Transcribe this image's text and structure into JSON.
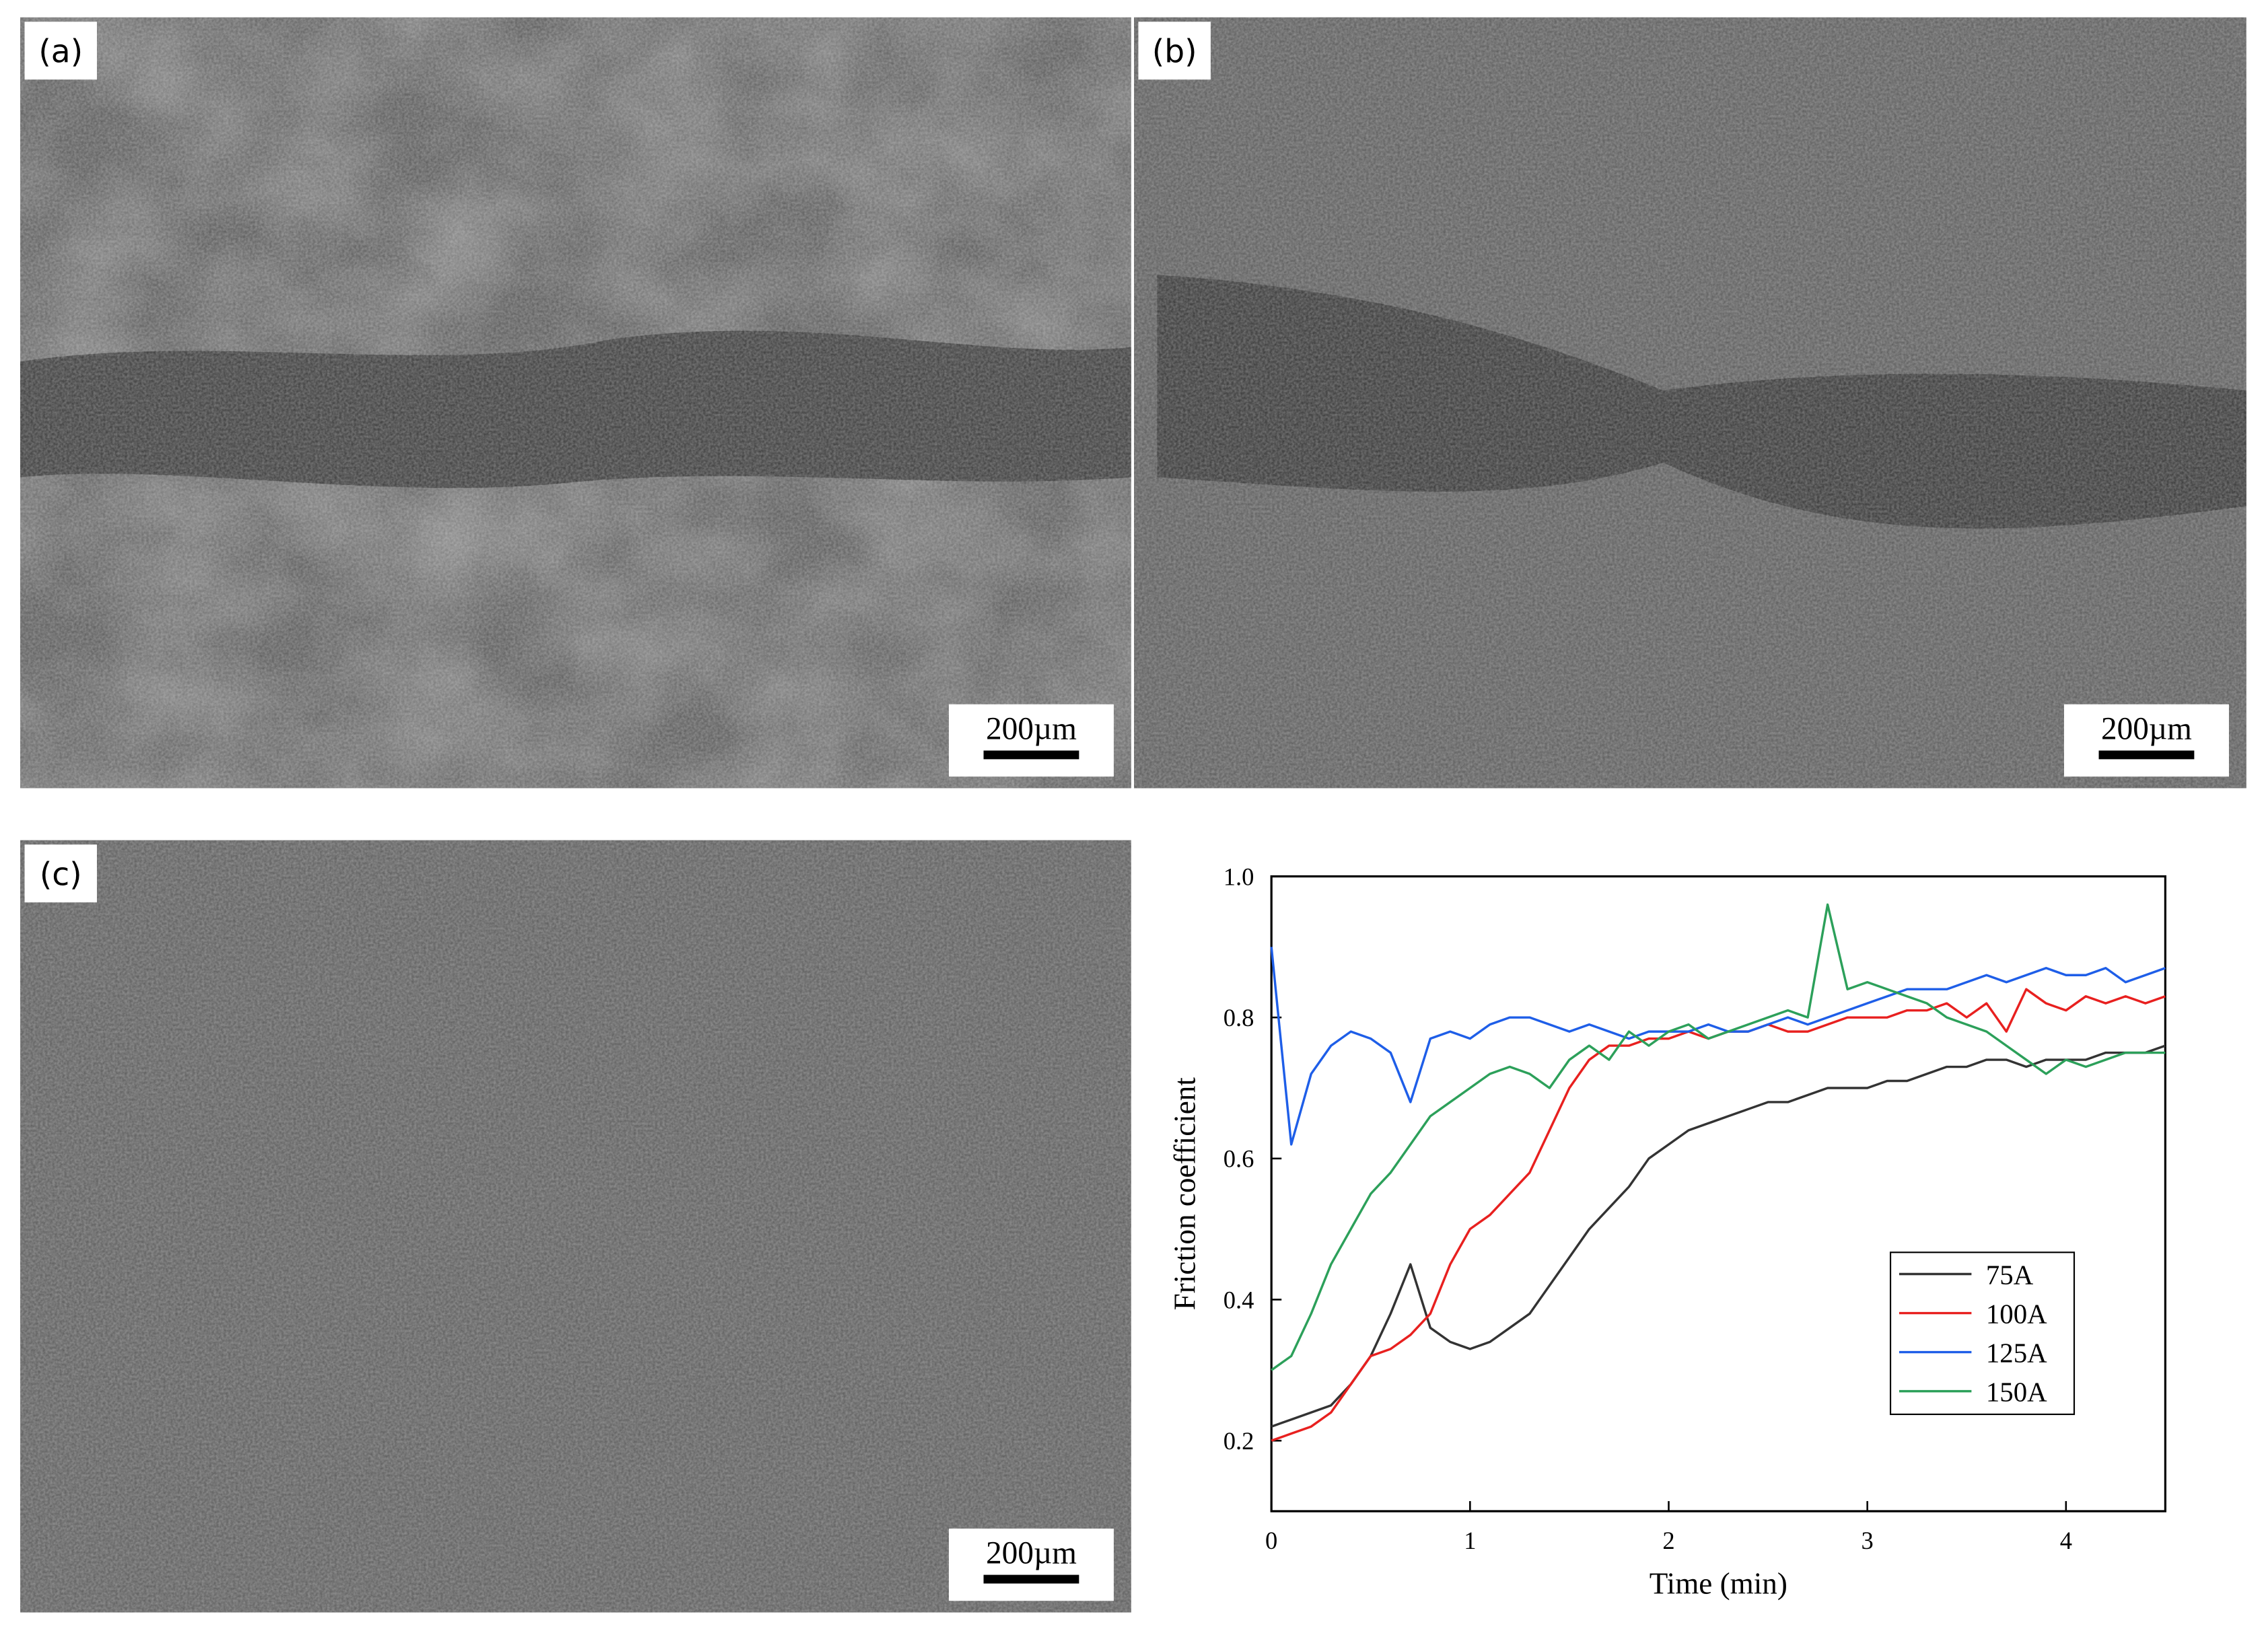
{
  "panels": [
    {
      "label": "(a)",
      "scale_bar": "200µm"
    },
    {
      "label": "(b)",
      "scale_bar": "200µm"
    },
    {
      "label": "(c)",
      "scale_bar": "200µm"
    }
  ],
  "chart_data": {
    "type": "line",
    "xlabel": "Time (min)",
    "ylabel": "Friction coefficient",
    "x": [
      0,
      0.1,
      0.2,
      0.3,
      0.4,
      0.5,
      0.6,
      0.7,
      0.8,
      0.9,
      1,
      1.1,
      1.2,
      1.3,
      1.4,
      1.5,
      1.6,
      1.7,
      1.8,
      1.9,
      2,
      2.1,
      2.2,
      2.3,
      2.4,
      2.5,
      2.6,
      2.7,
      2.8,
      2.9,
      3,
      3.1,
      3.2,
      3.3,
      3.4,
      3.5,
      3.6,
      3.7,
      3.8,
      3.9,
      4,
      4.1,
      4.2,
      4.3,
      4.4,
      4.5
    ],
    "series": [
      {
        "name": "75A",
        "color": "#333333",
        "values": [
          0.22,
          0.23,
          0.24,
          0.25,
          0.28,
          0.32,
          0.38,
          0.45,
          0.36,
          0.34,
          0.33,
          0.34,
          0.36,
          0.38,
          0.42,
          0.46,
          0.5,
          0.53,
          0.56,
          0.6,
          0.62,
          0.64,
          0.65,
          0.66,
          0.67,
          0.68,
          0.68,
          0.69,
          0.7,
          0.7,
          0.7,
          0.71,
          0.71,
          0.72,
          0.73,
          0.73,
          0.74,
          0.74,
          0.73,
          0.74,
          0.74,
          0.74,
          0.75,
          0.75,
          0.75,
          0.76
        ]
      },
      {
        "name": "100A",
        "color": "#e8201f",
        "values": [
          0.2,
          0.21,
          0.22,
          0.24,
          0.28,
          0.32,
          0.33,
          0.35,
          0.38,
          0.45,
          0.5,
          0.52,
          0.55,
          0.58,
          0.64,
          0.7,
          0.74,
          0.76,
          0.76,
          0.77,
          0.77,
          0.78,
          0.77,
          0.78,
          0.78,
          0.79,
          0.78,
          0.78,
          0.79,
          0.8,
          0.8,
          0.8,
          0.81,
          0.81,
          0.82,
          0.8,
          0.82,
          0.78,
          0.84,
          0.82,
          0.81,
          0.83,
          0.82,
          0.83,
          0.82,
          0.83
        ]
      },
      {
        "name": "125A",
        "color": "#1e5ee8",
        "values": [
          0.9,
          0.62,
          0.72,
          0.76,
          0.78,
          0.77,
          0.75,
          0.68,
          0.77,
          0.78,
          0.77,
          0.79,
          0.8,
          0.8,
          0.79,
          0.78,
          0.79,
          0.78,
          0.77,
          0.78,
          0.78,
          0.78,
          0.79,
          0.78,
          0.78,
          0.79,
          0.8,
          0.79,
          0.8,
          0.81,
          0.82,
          0.83,
          0.84,
          0.84,
          0.84,
          0.85,
          0.86,
          0.85,
          0.86,
          0.87,
          0.86,
          0.86,
          0.87,
          0.85,
          0.86,
          0.87
        ]
      },
      {
        "name": "150A",
        "color": "#2ca05a",
        "values": [
          0.3,
          0.32,
          0.38,
          0.45,
          0.5,
          0.55,
          0.58,
          0.62,
          0.66,
          0.68,
          0.7,
          0.72,
          0.73,
          0.72,
          0.7,
          0.74,
          0.76,
          0.74,
          0.78,
          0.76,
          0.78,
          0.79,
          0.77,
          0.78,
          0.79,
          0.8,
          0.81,
          0.8,
          0.96,
          0.84,
          0.85,
          0.84,
          0.83,
          0.82,
          0.8,
          0.79,
          0.78,
          0.76,
          0.74,
          0.72,
          0.74,
          0.73,
          0.74,
          0.75,
          0.75,
          0.75
        ]
      }
    ],
    "xlim": [
      0,
      4.5
    ],
    "ylim": [
      0.1,
      1.0
    ],
    "xticks": [
      0,
      1,
      2,
      3,
      4
    ],
    "yticks": [
      0.2,
      0.4,
      0.6,
      0.8,
      {
        "value": 1,
        "label": "1.0"
      }
    ],
    "legend": "lower right"
  }
}
